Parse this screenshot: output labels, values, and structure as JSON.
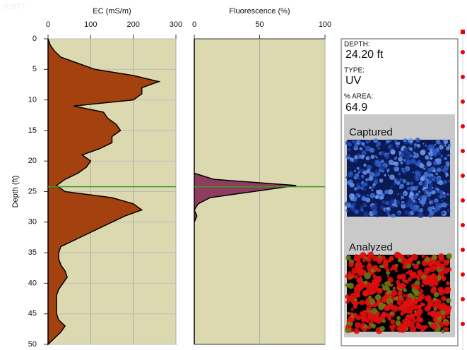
{
  "watermark": "97877",
  "cursor_depth": 24.2,
  "chart_data": [
    {
      "type": "area",
      "horizontal": true,
      "title": "EC (mS/m)",
      "ylabel": "Depth (ft)",
      "x": [
        0,
        1,
        2,
        3,
        4,
        5,
        6,
        7,
        8,
        9,
        10,
        11,
        12,
        13,
        14,
        15,
        16,
        17,
        18,
        19,
        20,
        21,
        22,
        23,
        24,
        25,
        26,
        27,
        28,
        29,
        30,
        31,
        32,
        33,
        34,
        35,
        36,
        37,
        38,
        39,
        40,
        41,
        42,
        43,
        44,
        45,
        46,
        47,
        48,
        49,
        50
      ],
      "values": [
        0,
        5,
        15,
        30,
        70,
        110,
        200,
        260,
        220,
        220,
        200,
        60,
        130,
        140,
        160,
        170,
        150,
        150,
        120,
        80,
        100,
        90,
        70,
        40,
        20,
        40,
        150,
        200,
        220,
        180,
        150,
        120,
        90,
        60,
        30,
        25,
        25,
        30,
        40,
        45,
        35,
        25,
        20,
        20,
        20,
        20,
        25,
        40,
        30,
        15,
        0
      ],
      "color": "#a3420f",
      "xlim": [
        0,
        50
      ],
      "ylim": [
        0,
        300
      ],
      "xticks": [
        0,
        5,
        10,
        15,
        20,
        25,
        30,
        35,
        40,
        45,
        50
      ],
      "yticks": [
        0,
        100,
        200,
        300
      ],
      "grid": true
    },
    {
      "type": "area",
      "horizontal": true,
      "title": "Fluorescence (%)",
      "x": [
        0,
        22,
        23,
        24,
        25,
        26,
        27,
        28,
        29,
        30,
        50
      ],
      "values": [
        0,
        0,
        15,
        78,
        45,
        12,
        3,
        0,
        2,
        0,
        0
      ],
      "color": "#8e3d5e",
      "xlim": [
        0,
        50
      ],
      "ylim": [
        0,
        100
      ],
      "yticks": [
        0,
        50,
        100
      ],
      "grid": true
    }
  ],
  "panel": {
    "depth_label": "DEPTH:",
    "depth": "24.20 ft",
    "type_label": "TYPE:",
    "type": "UV",
    "area_label": "% AREA:",
    "area": "64.9",
    "captured": "Captured",
    "analyzed": "Analyzed"
  }
}
